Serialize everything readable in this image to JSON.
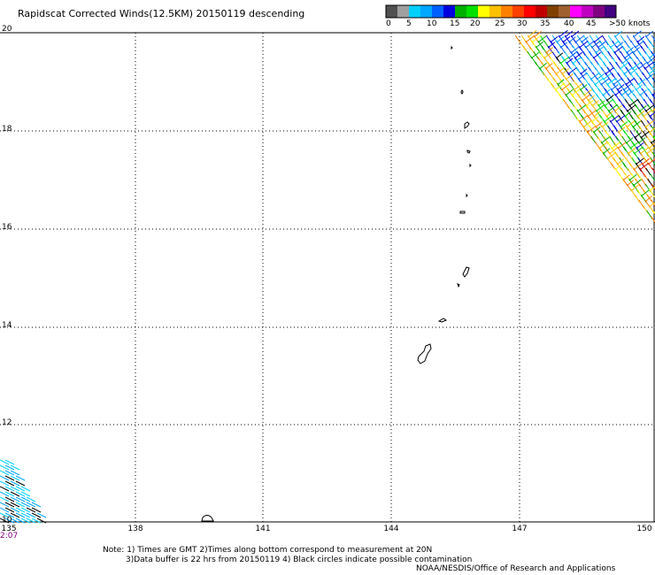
{
  "title": "Rapidscat Corrected Winds(12.5KM) 20150119 descending",
  "legend": {
    "unit_label": ">50 knots",
    "ticks": [
      "0",
      "5",
      "10",
      "15",
      "20",
      "25",
      "30",
      "35",
      "40",
      "45"
    ],
    "colors": [
      "#505050",
      "#a0a0a0",
      "#00d0ff",
      "#00a8ff",
      "#0060ff",
      "#0000e0",
      "#00b000",
      "#00e000",
      "#ffff00",
      "#ffc000",
      "#ff8000",
      "#ff4000",
      "#ff0000",
      "#c00000",
      "#804000",
      "#a06030",
      "#ff00ff",
      "#c000c0",
      "#800080",
      "#400080"
    ]
  },
  "map": {
    "lat_labels": [
      "20",
      "18",
      "16",
      "14",
      "12",
      "10"
    ],
    "lon_labels": [
      "135",
      "138",
      "141",
      "144",
      "147",
      "150"
    ],
    "time_label": "2:07"
  },
  "notes": {
    "line1": "Note: 1) Times are GMT 2)Times along bottom correspond to measurement at 20N",
    "line2": "3)Data buffer is 22 hrs from 20150119 4) Black circles indicate possible contamination",
    "credit": "NOAA/NESDIS/Office of Research and Applications"
  }
}
